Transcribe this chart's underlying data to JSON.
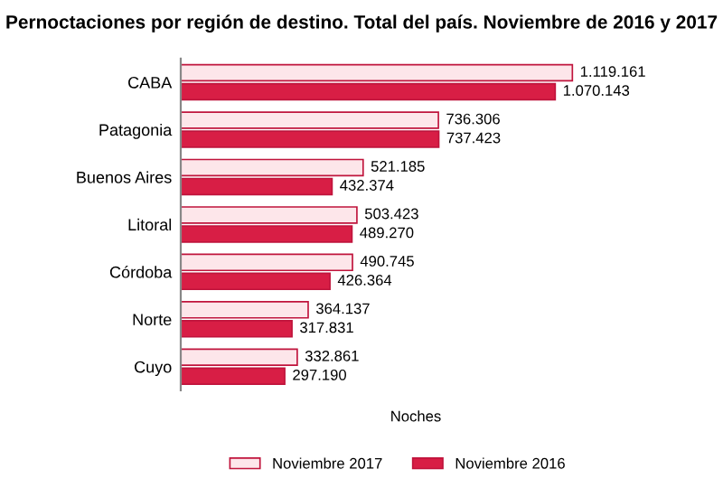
{
  "chart_data": {
    "type": "bar",
    "orientation": "horizontal",
    "title": "Pernoctaciones por región de destino. Total del país. Noviembre de 2016 y 2017",
    "xlabel": "Noches",
    "categories": [
      "CABA",
      "Patagonia",
      "Buenos Aires",
      "Litoral",
      "Córdoba",
      "Norte",
      "Cuyo"
    ],
    "series": [
      {
        "name": "Noviembre 2017",
        "color": "#fde6ea",
        "values": [
          1119161,
          736306,
          521185,
          503423,
          490745,
          364137,
          332861
        ],
        "value_labels": [
          "1.119.161",
          "736.306",
          "521.185",
          "503.423",
          "490.745",
          "364.137",
          "332.861"
        ]
      },
      {
        "name": "Noviembre 2016",
        "color": "#d81e45",
        "values": [
          1070143,
          737423,
          432374,
          489270,
          426364,
          317831,
          297190
        ],
        "value_labels": [
          "1.070.143",
          "737.423",
          "432.374",
          "489.270",
          "426.364",
          "317.831",
          "297.190"
        ]
      }
    ],
    "legend": "bottom",
    "grid": false
  }
}
